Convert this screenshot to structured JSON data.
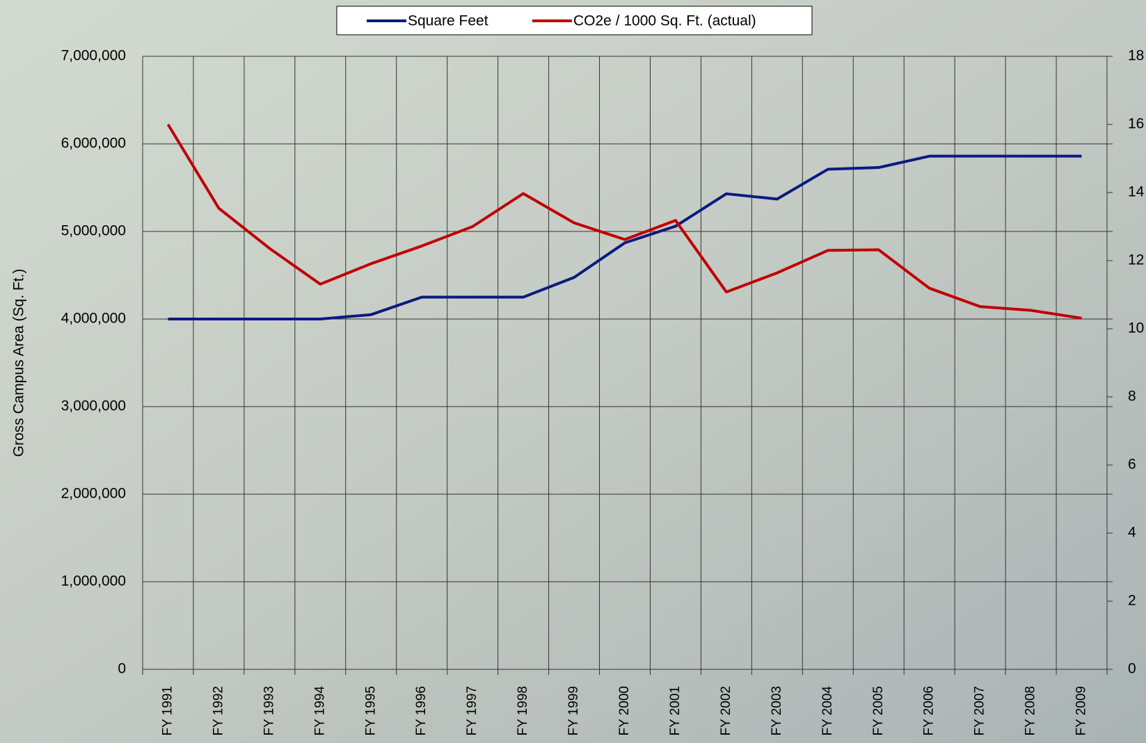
{
  "chart_data": {
    "type": "line",
    "y_label": "Gross Campus Area (Sq. Ft.)",
    "categories": [
      "FY 1991",
      "FY 1992",
      "FY 1993",
      "FY 1994",
      "FY 1995",
      "FY 1996",
      "FY 1997",
      "FY 1998",
      "FY 1999",
      "FY 2000",
      "FY 2001",
      "FY 2002",
      "FY 2003",
      "FY 2004",
      "FY 2005",
      "FY 2006",
      "FY 2007",
      "FY 2008",
      "FY 2009"
    ],
    "series": [
      {
        "name": "Square Feet",
        "color": "#0b1a80",
        "values": [
          4000000,
          4000000,
          4000000,
          4000000,
          4050000,
          4250000,
          4250000,
          4250000,
          4475000,
          4870000,
          5060000,
          5430000,
          5370000,
          5710000,
          5730000,
          5860000,
          5860000,
          5860000,
          5860000
        ]
      },
      {
        "name": "CO2e / 1000 Sq. Ft. (actual)",
        "color": "#c00000",
        "axis": "y2",
        "values": [
          16.0,
          13.54,
          12.36,
          11.31,
          11.91,
          12.43,
          13.0,
          13.97,
          13.11,
          12.62,
          13.18,
          11.08,
          11.64,
          12.3,
          12.32,
          11.19,
          10.65,
          10.54,
          10.31
        ]
      }
    ],
    "ylim": [
      0,
      7000000
    ],
    "yticks": [
      0,
      {
        "value": 1000000,
        "label": "1,000,000"
      },
      {
        "value": 2000000,
        "label": "2,000,000"
      },
      {
        "value": 3000000,
        "label": "3,000,000"
      },
      {
        "value": 4000000,
        "label": "4,000,000"
      },
      {
        "value": 5000000,
        "label": "5,000,000"
      },
      {
        "value": 6000000,
        "label": "6,000,000"
      },
      {
        "value": 7000000,
        "label": "7,000,000"
      }
    ],
    "y2lim": [
      0,
      18
    ],
    "y2ticks": [
      0,
      2,
      4,
      6,
      8,
      10,
      12,
      14,
      16,
      18
    ],
    "grid": true,
    "legend": "top"
  }
}
